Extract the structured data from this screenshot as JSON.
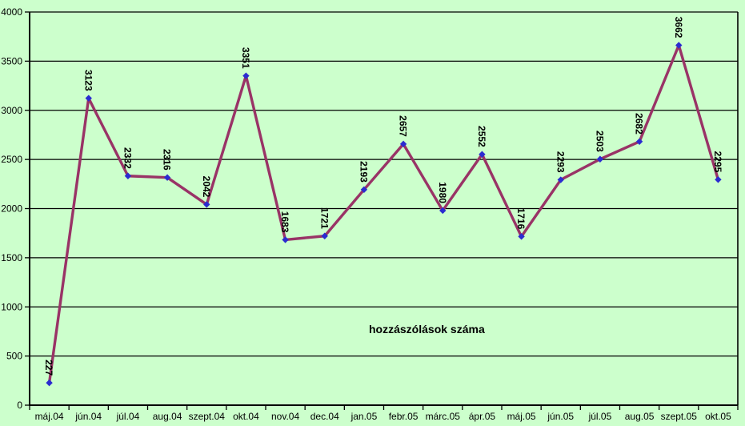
{
  "chart_data": {
    "type": "line",
    "title": "hozzászólások száma",
    "categories": [
      "máj.04",
      "jún.04",
      "júl.04",
      "aug.04",
      "szept.04",
      "okt.04",
      "nov.04",
      "dec.04",
      "jan.05",
      "febr.05",
      "márc.05",
      "ápr.05",
      "máj.05",
      "jún.05",
      "júl.05",
      "aug.05",
      "szept.05",
      "okt.05"
    ],
    "values": [
      227,
      3123,
      2332,
      2316,
      2042,
      3351,
      1683,
      1721,
      2193,
      2657,
      1980,
      2552,
      1716,
      2293,
      2503,
      2682,
      3662,
      2295
    ],
    "data_labels": [
      "227",
      "3123",
      "2332",
      "2316",
      "2042",
      "3351",
      "1683",
      "1721",
      "2193",
      "2657",
      "1980",
      "2552",
      "1716",
      "2293",
      "2503",
      "2682",
      "3662",
      "2295"
    ],
    "yticks": [
      "0",
      "500",
      "1000",
      "1500",
      "2000",
      "2500",
      "3000",
      "3500",
      "4000"
    ],
    "ylim": [
      0,
      4000
    ],
    "ytick_step": 500,
    "grid": true,
    "legend": "none",
    "xlabel": "",
    "ylabel": "",
    "marker_shape": "diamond",
    "colors": {
      "background": "#ccffcc",
      "line": "#993366",
      "marker": "#2b2bd0",
      "grid": "#000000",
      "axis": "#000000",
      "text": "#000000"
    }
  }
}
